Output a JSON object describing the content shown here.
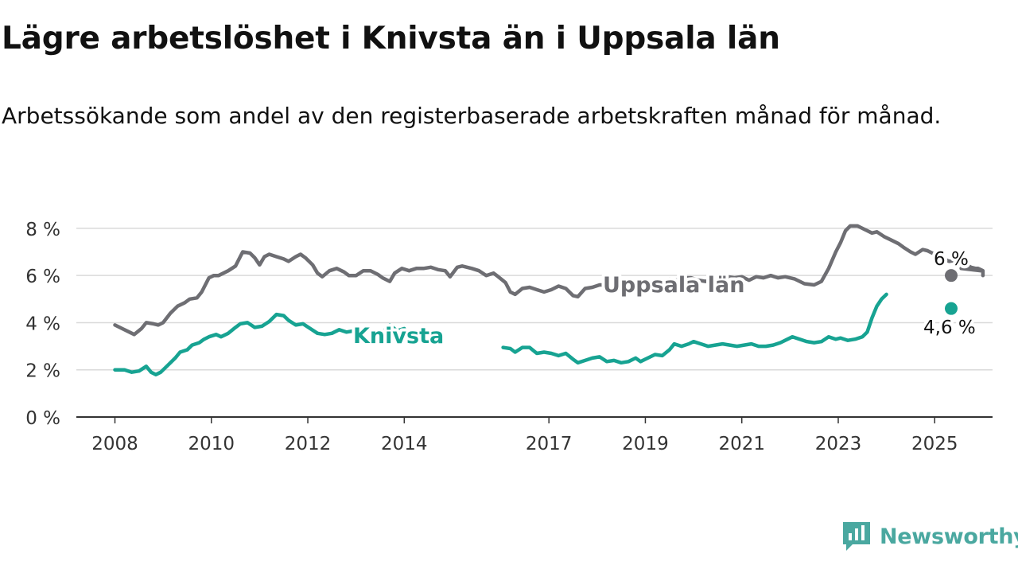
{
  "header": {
    "title": "Lägre arbetslöshet i Knivsta än i Uppsala län",
    "subtitle": "Arbetssökande som andel av den registerbaserade arbetskraften månad för månad."
  },
  "brand": {
    "name": "Newsworthy",
    "icon": "newsworthy-logo-icon",
    "color": "#4aa8a0"
  },
  "chart_data": {
    "type": "line",
    "title": "Lägre arbetslöshet i Knivsta än i Uppsala län",
    "subtitle": "Arbetssökande som andel av den registerbaserade arbetskraften månad för månad.",
    "y_ticks": [
      0,
      2,
      4,
      6,
      8
    ],
    "y_tick_labels": [
      "0 %",
      "2 %",
      "4 %",
      "6 %",
      "8 %"
    ],
    "x_ticks": [
      2008,
      2010,
      2012,
      2014,
      2017,
      2019,
      2021,
      2023,
      2025
    ],
    "x_tick_labels": [
      "2008",
      "2010",
      "2012",
      "2014",
      "2017",
      "2019",
      "2021",
      "2023",
      "2025"
    ],
    "ylim": [
      0,
      8.3
    ],
    "xlim": [
      2007.2,
      2026.2
    ],
    "grid": true,
    "legend": "inline labels",
    "series": [
      {
        "name": "Uppsala län",
        "color": "#6e6e73",
        "end_label": "6 %",
        "points": [
          [
            2008.0,
            3.9
          ],
          [
            2008.15,
            3.75
          ],
          [
            2008.3,
            3.6
          ],
          [
            2008.4,
            3.5
          ],
          [
            2008.55,
            3.75
          ],
          [
            2008.65,
            4.0
          ],
          [
            2008.8,
            3.95
          ],
          [
            2008.9,
            3.9
          ],
          [
            2009.0,
            4.0
          ],
          [
            2009.15,
            4.4
          ],
          [
            2009.3,
            4.7
          ],
          [
            2009.45,
            4.85
          ],
          [
            2009.55,
            5.0
          ],
          [
            2009.7,
            5.05
          ],
          [
            2009.8,
            5.3
          ],
          [
            2009.95,
            5.9
          ],
          [
            2010.05,
            6.0
          ],
          [
            2010.15,
            6.0
          ],
          [
            2010.35,
            6.2
          ],
          [
            2010.5,
            6.4
          ],
          [
            2010.6,
            6.8
          ],
          [
            2010.65,
            7.0
          ],
          [
            2010.8,
            6.95
          ],
          [
            2010.9,
            6.75
          ],
          [
            2011.0,
            6.45
          ],
          [
            2011.1,
            6.8
          ],
          [
            2011.2,
            6.9
          ],
          [
            2011.35,
            6.8
          ],
          [
            2011.5,
            6.7
          ],
          [
            2011.6,
            6.6
          ],
          [
            2011.75,
            6.8
          ],
          [
            2011.85,
            6.9
          ],
          [
            2011.95,
            6.75
          ],
          [
            2012.1,
            6.45
          ],
          [
            2012.2,
            6.1
          ],
          [
            2012.3,
            5.95
          ],
          [
            2012.45,
            6.2
          ],
          [
            2012.6,
            6.3
          ],
          [
            2012.75,
            6.15
          ],
          [
            2012.85,
            6.0
          ],
          [
            2013.0,
            6.0
          ],
          [
            2013.15,
            6.2
          ],
          [
            2013.3,
            6.2
          ],
          [
            2013.45,
            6.05
          ],
          [
            2013.55,
            5.9
          ],
          [
            2013.7,
            5.75
          ],
          [
            2013.8,
            6.1
          ],
          [
            2013.95,
            6.3
          ],
          [
            2014.1,
            6.2
          ],
          [
            2014.25,
            6.3
          ],
          [
            2014.4,
            6.3
          ],
          [
            2014.55,
            6.35
          ],
          [
            2014.7,
            6.25
          ],
          [
            2014.85,
            6.2
          ],
          [
            2014.95,
            5.95
          ],
          [
            2015.1,
            6.35
          ],
          [
            2015.2,
            6.4
          ],
          [
            2015.4,
            6.3
          ],
          [
            2015.55,
            6.2
          ],
          [
            2015.7,
            6.0
          ],
          [
            2015.85,
            6.1
          ],
          [
            2015.95,
            5.95
          ],
          [
            2016.1,
            5.7
          ],
          [
            2016.2,
            5.3
          ],
          [
            2016.3,
            5.2
          ],
          [
            2016.45,
            5.45
          ],
          [
            2016.6,
            5.5
          ],
          [
            2016.75,
            5.4
          ],
          [
            2016.9,
            5.3
          ],
          [
            2017.05,
            5.4
          ],
          [
            2017.2,
            5.55
          ],
          [
            2017.35,
            5.45
          ],
          [
            2017.5,
            5.15
          ],
          [
            2017.6,
            5.1
          ],
          [
            2017.75,
            5.45
          ],
          [
            2017.9,
            5.5
          ],
          [
            2018.05,
            5.6
          ],
          [
            2018.25,
            5.6
          ],
          [
            2018.45,
            5.6
          ],
          [
            2018.6,
            5.5
          ],
          [
            2018.75,
            5.35
          ],
          [
            2018.9,
            5.4
          ],
          [
            2019.05,
            5.6
          ],
          [
            2019.2,
            5.75
          ],
          [
            2019.35,
            5.75
          ],
          [
            2019.5,
            5.85
          ],
          [
            2019.65,
            5.8
          ],
          [
            2019.8,
            5.9
          ],
          [
            2019.95,
            5.9
          ],
          [
            2020.1,
            5.8
          ],
          [
            2020.25,
            5.75
          ],
          [
            2020.4,
            5.85
          ],
          [
            2020.55,
            5.95
          ],
          [
            2020.7,
            5.95
          ],
          [
            2020.85,
            5.9
          ],
          [
            2021.0,
            5.95
          ],
          [
            2021.15,
            5.8
          ],
          [
            2021.3,
            5.95
          ],
          [
            2021.45,
            5.9
          ],
          [
            2021.6,
            6.0
          ],
          [
            2021.75,
            5.9
          ],
          [
            2021.9,
            5.95
          ],
          [
            2022.1,
            5.85
          ],
          [
            2022.3,
            5.65
          ],
          [
            2022.5,
            5.6
          ],
          [
            2022.65,
            5.75
          ],
          [
            2022.8,
            6.3
          ],
          [
            2022.95,
            7.0
          ],
          [
            2023.05,
            7.4
          ],
          [
            2023.15,
            7.9
          ],
          [
            2023.25,
            8.1
          ],
          [
            2023.4,
            8.1
          ],
          [
            2023.55,
            7.95
          ],
          [
            2023.7,
            7.8
          ],
          [
            2023.8,
            7.85
          ],
          [
            2023.95,
            7.65
          ],
          [
            2024.1,
            7.5
          ],
          [
            2024.25,
            7.35
          ],
          [
            2024.35,
            7.2
          ],
          [
            2024.5,
            7.0
          ],
          [
            2024.6,
            6.9
          ],
          [
            2024.75,
            7.1
          ],
          [
            2024.85,
            7.05
          ],
          [
            2025.0,
            6.9
          ],
          [
            2025.15,
            6.75
          ],
          [
            2025.3,
            6.6
          ],
          [
            2025.45,
            6.65
          ],
          [
            2025.6,
            6.55
          ],
          [
            2025.75,
            6.35
          ],
          [
            2025.85,
            6.3
          ],
          [
            2025.95,
            6.2
          ],
          [
            2025.55,
            6.3
          ],
          [
            2025.75,
            6.3
          ],
          [
            2025.9,
            6.3
          ],
          [
            2026.0,
            6.2
          ],
          [
            2026.0,
            6.0
          ]
        ]
      },
      {
        "name": "Knivsta",
        "color": "#17a392",
        "end_label": "4,6 %",
        "points": [
          [
            2008.0,
            2.0
          ],
          [
            2008.2,
            2.0
          ],
          [
            2008.35,
            1.9
          ],
          [
            2008.5,
            1.95
          ],
          [
            2008.65,
            2.15
          ],
          [
            2008.75,
            1.9
          ],
          [
            2008.85,
            1.8
          ],
          [
            2008.95,
            1.9
          ],
          [
            2009.1,
            2.2
          ],
          [
            2009.25,
            2.5
          ],
          [
            2009.35,
            2.75
          ],
          [
            2009.5,
            2.85
          ],
          [
            2009.6,
            3.05
          ],
          [
            2009.75,
            3.15
          ],
          [
            2009.85,
            3.3
          ],
          [
            2009.95,
            3.4
          ],
          [
            2010.1,
            3.5
          ],
          [
            2010.2,
            3.4
          ],
          [
            2010.35,
            3.55
          ],
          [
            2010.5,
            3.8
          ],
          [
            2010.6,
            3.95
          ],
          [
            2010.75,
            4.0
          ],
          [
            2010.9,
            3.8
          ],
          [
            2011.05,
            3.85
          ],
          [
            2011.2,
            4.05
          ],
          [
            2011.35,
            4.35
          ],
          [
            2011.5,
            4.3
          ],
          [
            2011.6,
            4.1
          ],
          [
            2011.75,
            3.9
          ],
          [
            2011.9,
            3.95
          ],
          [
            2012.05,
            3.75
          ],
          [
            2012.2,
            3.55
          ],
          [
            2012.35,
            3.5
          ],
          [
            2012.5,
            3.55
          ],
          [
            2012.65,
            3.7
          ],
          [
            2012.8,
            3.6
          ],
          [
            2012.95,
            3.65
          ],
          [
            2013.05,
            3.6
          ],
          [
            2013.2,
            3.7
          ],
          [
            2013.35,
            3.6
          ],
          [
            2013.55,
            3.6
          ],
          [
            2013.7,
            3.9
          ],
          [
            2013.85,
            3.65
          ],
          [
            2014.0,
            3.75
          ]
        ],
        "points_b": [
          [
            2016.05,
            2.95
          ],
          [
            2016.2,
            2.9
          ],
          [
            2016.3,
            2.75
          ],
          [
            2016.45,
            2.95
          ],
          [
            2016.6,
            2.95
          ],
          [
            2016.75,
            2.7
          ],
          [
            2016.9,
            2.75
          ],
          [
            2017.05,
            2.7
          ],
          [
            2017.2,
            2.6
          ],
          [
            2017.35,
            2.7
          ],
          [
            2017.5,
            2.45
          ],
          [
            2017.6,
            2.3
          ],
          [
            2017.75,
            2.4
          ],
          [
            2017.9,
            2.5
          ],
          [
            2018.05,
            2.55
          ],
          [
            2018.2,
            2.35
          ],
          [
            2018.35,
            2.4
          ],
          [
            2018.5,
            2.3
          ],
          [
            2018.65,
            2.35
          ],
          [
            2018.8,
            2.5
          ],
          [
            2018.9,
            2.35
          ],
          [
            2019.05,
            2.5
          ],
          [
            2019.2,
            2.65
          ],
          [
            2019.35,
            2.6
          ],
          [
            2019.5,
            2.85
          ],
          [
            2019.6,
            3.1
          ],
          [
            2019.75,
            3.0
          ],
          [
            2019.9,
            3.1
          ],
          [
            2020.0,
            3.2
          ],
          [
            2020.15,
            3.1
          ],
          [
            2020.3,
            3.0
          ],
          [
            2020.45,
            3.05
          ],
          [
            2020.6,
            3.1
          ],
          [
            2020.75,
            3.05
          ],
          [
            2020.9,
            3.0
          ],
          [
            2021.05,
            3.05
          ],
          [
            2021.2,
            3.1
          ],
          [
            2021.35,
            3.0
          ],
          [
            2021.5,
            3.0
          ],
          [
            2021.65,
            3.05
          ],
          [
            2021.8,
            3.15
          ],
          [
            2021.95,
            3.3
          ],
          [
            2022.05,
            3.4
          ],
          [
            2022.2,
            3.3
          ],
          [
            2022.35,
            3.2
          ],
          [
            2022.5,
            3.15
          ],
          [
            2022.65,
            3.2
          ],
          [
            2022.8,
            3.4
          ],
          [
            2022.95,
            3.3
          ],
          [
            2023.05,
            3.35
          ],
          [
            2023.2,
            3.25
          ],
          [
            2023.35,
            3.3
          ],
          [
            2023.5,
            3.4
          ],
          [
            2023.6,
            3.6
          ],
          [
            2023.7,
            4.2
          ],
          [
            2023.8,
            4.7
          ],
          [
            2023.9,
            5.0
          ],
          [
            2024.0,
            5.2
          ]
        ]
      }
    ]
  }
}
